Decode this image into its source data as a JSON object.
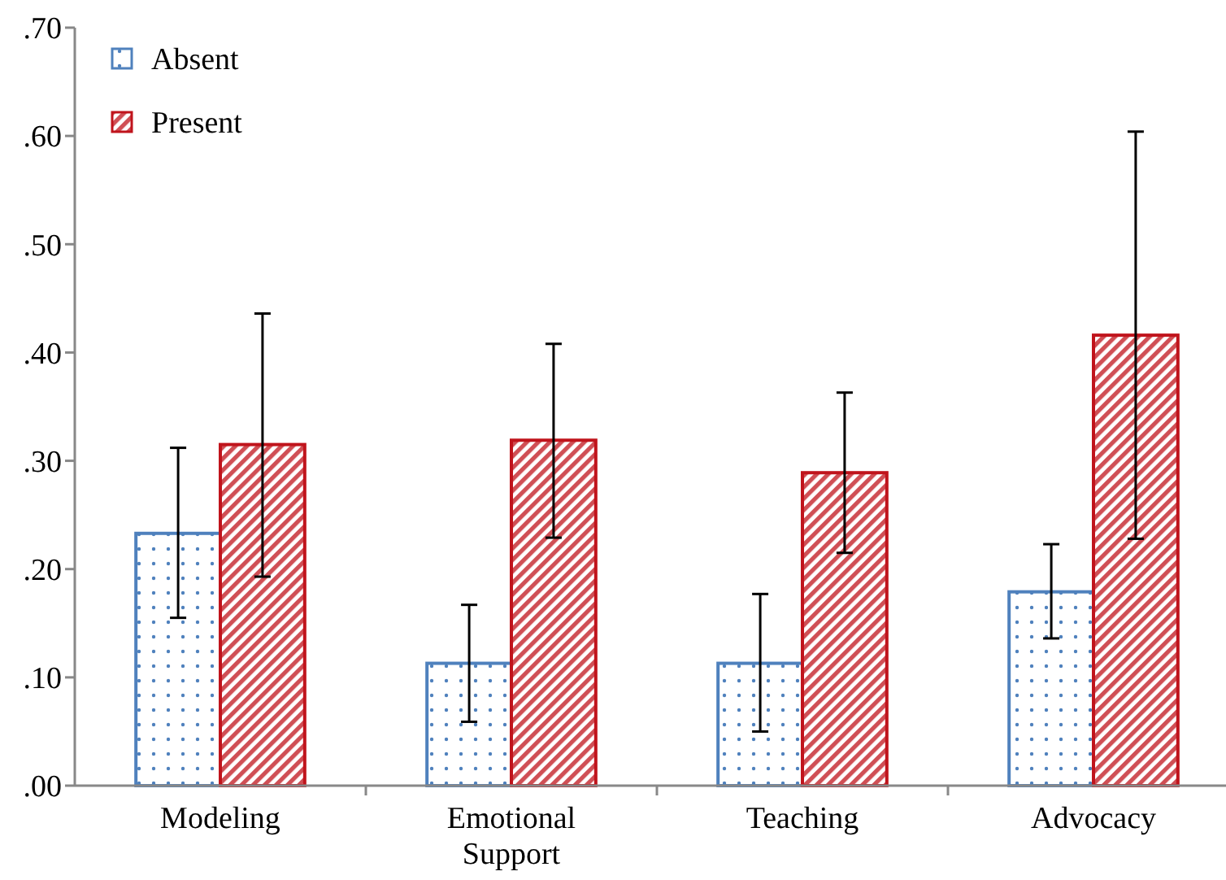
{
  "chart_data": {
    "type": "bar",
    "categories": [
      "Modeling",
      "Emotional Support",
      "Teaching",
      "Advocacy"
    ],
    "series": [
      {
        "name": "Absent",
        "color": "#4f81bd",
        "values": [
          0.233,
          0.113,
          0.113,
          0.179
        ],
        "errors": [
          [
            0.155,
            0.312
          ],
          [
            0.059,
            0.167
          ],
          [
            0.05,
            0.177
          ],
          [
            0.136,
            0.223
          ]
        ]
      },
      {
        "name": "Present",
        "color": "#c0141c",
        "values": [
          0.315,
          0.319,
          0.289,
          0.416
        ],
        "errors": [
          [
            0.193,
            0.436
          ],
          [
            0.229,
            0.408
          ],
          [
            0.215,
            0.363
          ],
          [
            0.228,
            0.604
          ]
        ]
      }
    ],
    "ylim": [
      0,
      0.7
    ],
    "yticks": [
      {
        "value": 0,
        "label": ".00"
      },
      {
        "value": 0.1,
        "label": ".10"
      },
      {
        "value": 0.2,
        "label": ".20"
      },
      {
        "value": 0.3,
        "label": ".30"
      },
      {
        "value": 0.4,
        "label": ".40"
      },
      {
        "value": 0.5,
        "label": ".50"
      },
      {
        "value": 0.6,
        "label": ".60"
      },
      {
        "value": 0.7,
        "label": ".70"
      }
    ],
    "grid": false,
    "legend": "top left"
  }
}
